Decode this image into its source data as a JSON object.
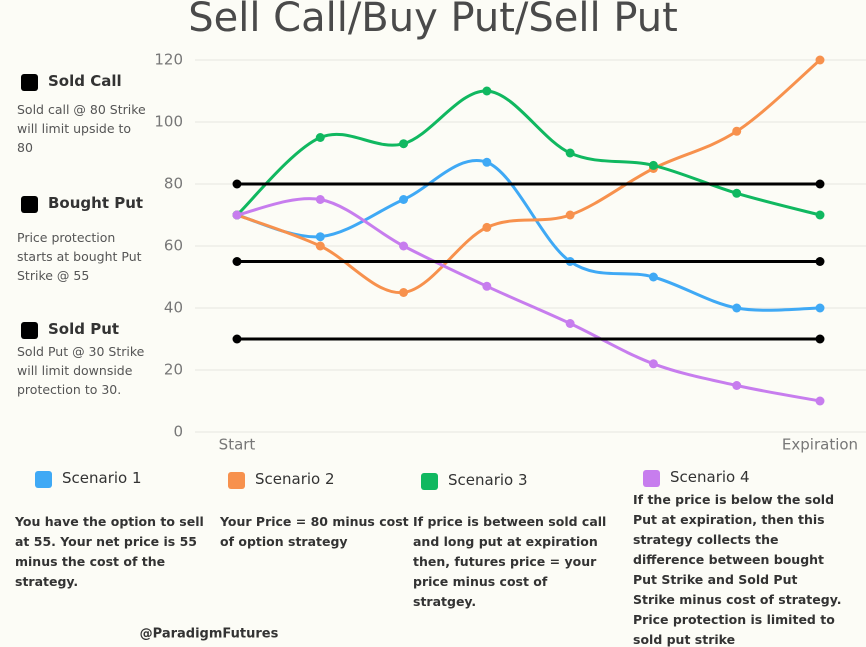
{
  "chart_data": {
    "type": "line",
    "title": "Sell Call/Buy Put/Sell Put",
    "footer": "@ParadigmFutures",
    "categories": [
      "Start",
      null,
      null,
      null,
      null,
      null,
      null,
      "Expiration"
    ],
    "ylim": [
      0,
      120
    ],
    "yticks": [
      0,
      20,
      40,
      60,
      80,
      100,
      120
    ],
    "grid": true,
    "smooth": true,
    "series": [
      {
        "name": "Scenario 1",
        "color": "#3fa9f5",
        "markers": "all",
        "legend": "bottom",
        "description": "You have the option to sell at 55. Your net price is 55 minus the cost of the strategy.",
        "values": [
          70,
          63,
          75,
          87,
          55,
          50,
          40,
          40
        ]
      },
      {
        "name": "Scenario 2",
        "color": "#f7914d",
        "markers": "all",
        "legend": "bottom",
        "description": "Your Price = 80 minus cost of option strategy",
        "values": [
          70,
          60,
          45,
          66,
          70,
          85,
          97,
          120
        ]
      },
      {
        "name": "Scenario 3",
        "color": "#10b860",
        "markers": "all",
        "legend": "bottom",
        "description": "If price is between sold call and long put at expiration then, futures price = your price minus cost of stratgey.",
        "values": [
          70,
          95,
          93,
          110,
          90,
          86,
          77,
          70
        ]
      },
      {
        "name": "Scenario 4",
        "color": "#c77dee",
        "markers": "all",
        "legend": "bottom",
        "description": "If the price is below the sold Put at expiration, then this strategy collects the difference between bought Put Strike and Sold Put Strike minus cost of strategy. Price protection is limited to sold put strike",
        "values": [
          70,
          75,
          60,
          47,
          35,
          22,
          15,
          10
        ]
      },
      {
        "name": "Sold Call",
        "color": "#000000",
        "markers": "ends",
        "legend": "left",
        "description": "Sold call @ 80 Strike will limit upside to 80",
        "values": [
          80,
          80,
          80,
          80,
          80,
          80,
          80,
          80
        ]
      },
      {
        "name": "Bought Put",
        "color": "#000000",
        "markers": "ends",
        "legend": "left",
        "description": "Price protection starts at bought Put Strike @ 55",
        "values": [
          55,
          55,
          55,
          55,
          55,
          55,
          55,
          55
        ]
      },
      {
        "name": "Sold Put",
        "color": "#000000",
        "markers": "ends",
        "legend": "left",
        "description": "Sold Put @ 30 Strike will limit downside protection to 30.",
        "values": [
          30,
          30,
          30,
          30,
          30,
          30,
          30,
          30
        ]
      }
    ]
  }
}
